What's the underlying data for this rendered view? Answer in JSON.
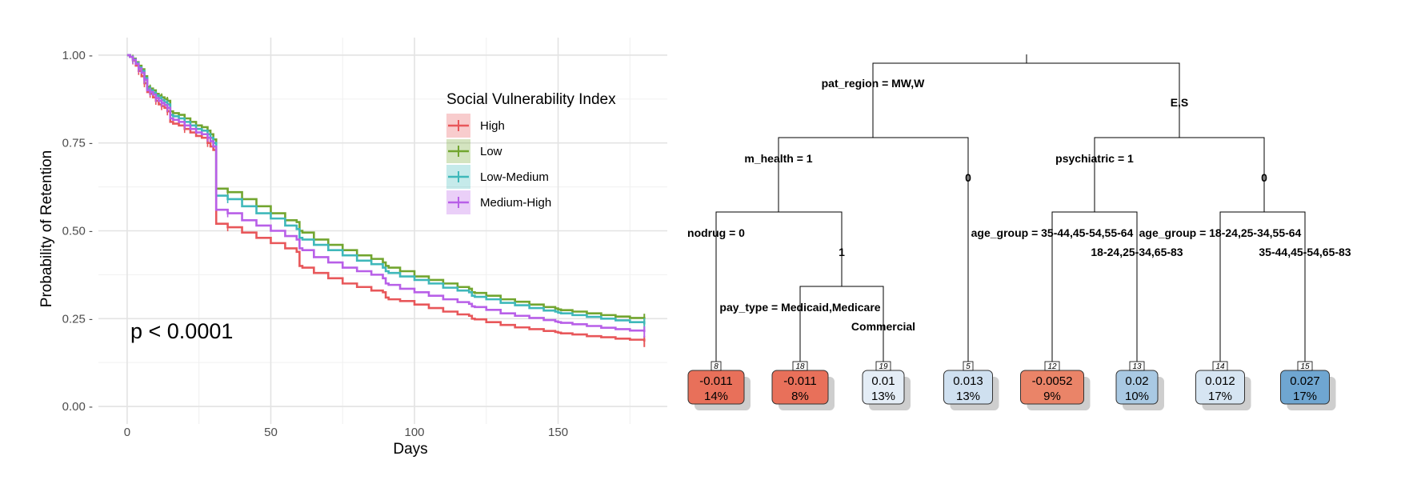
{
  "chart_data": [
    {
      "type": "line",
      "title": "",
      "xlabel": "Days",
      "ylabel": "Probability of Retention",
      "xlim": [
        -10,
        188
      ],
      "ylim": [
        -0.05,
        1.05
      ],
      "x_ticks": [
        0,
        50,
        100,
        150
      ],
      "x_tick_labels": [
        "0",
        "50",
        "100",
        "150"
      ],
      "y_ticks": [
        0,
        0.25,
        0.5,
        0.75,
        1
      ],
      "y_tick_labels": [
        "0.00 -",
        "0.25 -",
        "0.50 -",
        "0.75 -",
        "1.00 -"
      ],
      "grid": true,
      "legend": {
        "title": "Social Vulnerability Index",
        "position": "top-right",
        "entries": [
          "High",
          "Low",
          "Low-Medium",
          "Medium-High"
        ]
      },
      "annotation": "p < 0.0001",
      "series": [
        {
          "name": "High",
          "color": "#e8575a",
          "x": [
            0,
            1,
            2,
            3,
            4,
            5,
            6,
            7,
            8,
            9,
            10,
            11,
            12,
            13,
            14,
            15,
            16,
            18,
            20,
            22,
            24,
            26,
            28,
            29,
            30,
            31,
            35,
            40,
            45,
            50,
            55,
            59,
            60,
            61,
            65,
            70,
            75,
            80,
            85,
            89,
            90,
            91,
            95,
            100,
            105,
            110,
            115,
            119,
            120,
            121,
            125,
            130,
            135,
            140,
            145,
            149,
            150,
            151,
            155,
            160,
            165,
            170,
            175,
            180
          ],
          "y": [
            1.0,
            0.995,
            0.985,
            0.97,
            0.955,
            0.94,
            0.92,
            0.895,
            0.89,
            0.88,
            0.87,
            0.86,
            0.855,
            0.85,
            0.84,
            0.81,
            0.805,
            0.8,
            0.79,
            0.78,
            0.77,
            0.765,
            0.75,
            0.74,
            0.73,
            0.52,
            0.51,
            0.495,
            0.48,
            0.465,
            0.45,
            0.44,
            0.4,
            0.395,
            0.38,
            0.365,
            0.35,
            0.34,
            0.33,
            0.325,
            0.31,
            0.305,
            0.3,
            0.29,
            0.28,
            0.27,
            0.262,
            0.258,
            0.25,
            0.248,
            0.24,
            0.232,
            0.225,
            0.22,
            0.215,
            0.212,
            0.21,
            0.208,
            0.205,
            0.2,
            0.197,
            0.193,
            0.19,
            0.185
          ]
        },
        {
          "name": "Low",
          "color": "#72a52f",
          "x": [
            0,
            1,
            2,
            3,
            4,
            5,
            6,
            7,
            8,
            9,
            10,
            11,
            12,
            13,
            14,
            15,
            16,
            18,
            20,
            22,
            24,
            26,
            28,
            29,
            30,
            31,
            35,
            40,
            45,
            50,
            55,
            59,
            60,
            61,
            65,
            70,
            75,
            80,
            85,
            89,
            90,
            91,
            95,
            100,
            105,
            110,
            115,
            119,
            120,
            121,
            125,
            130,
            135,
            140,
            145,
            149,
            150,
            151,
            155,
            160,
            165,
            170,
            175,
            180
          ],
          "y": [
            1.0,
            0.995,
            0.99,
            0.98,
            0.97,
            0.96,
            0.94,
            0.91,
            0.905,
            0.9,
            0.89,
            0.885,
            0.88,
            0.875,
            0.87,
            0.84,
            0.835,
            0.83,
            0.82,
            0.81,
            0.8,
            0.795,
            0.785,
            0.775,
            0.76,
            0.62,
            0.61,
            0.59,
            0.57,
            0.55,
            0.53,
            0.525,
            0.5,
            0.495,
            0.475,
            0.46,
            0.445,
            0.43,
            0.42,
            0.41,
            0.4,
            0.395,
            0.385,
            0.37,
            0.36,
            0.35,
            0.34,
            0.335,
            0.325,
            0.323,
            0.315,
            0.305,
            0.298,
            0.29,
            0.283,
            0.279,
            0.276,
            0.274,
            0.27,
            0.265,
            0.26,
            0.256,
            0.252,
            0.248
          ]
        },
        {
          "name": "Low-Medium",
          "color": "#3fb8ba",
          "x": [
            0,
            1,
            2,
            3,
            4,
            5,
            6,
            7,
            8,
            9,
            10,
            11,
            12,
            13,
            14,
            15,
            16,
            18,
            20,
            22,
            24,
            26,
            28,
            29,
            30,
            31,
            35,
            40,
            45,
            50,
            55,
            59,
            60,
            61,
            65,
            70,
            75,
            80,
            85,
            89,
            90,
            91,
            95,
            100,
            105,
            110,
            115,
            119,
            120,
            121,
            125,
            130,
            135,
            140,
            145,
            149,
            150,
            151,
            155,
            160,
            165,
            170,
            175,
            180
          ],
          "y": [
            1.0,
            0.995,
            0.988,
            0.978,
            0.965,
            0.955,
            0.935,
            0.905,
            0.9,
            0.893,
            0.885,
            0.878,
            0.872,
            0.866,
            0.86,
            0.83,
            0.826,
            0.82,
            0.81,
            0.8,
            0.79,
            0.785,
            0.775,
            0.765,
            0.75,
            0.6,
            0.59,
            0.57,
            0.55,
            0.535,
            0.515,
            0.505,
            0.48,
            0.475,
            0.46,
            0.445,
            0.43,
            0.415,
            0.405,
            0.395,
            0.385,
            0.38,
            0.37,
            0.36,
            0.35,
            0.338,
            0.33,
            0.325,
            0.315,
            0.312,
            0.305,
            0.295,
            0.288,
            0.28,
            0.273,
            0.27,
            0.267,
            0.265,
            0.26,
            0.255,
            0.25,
            0.245,
            0.24,
            0.235
          ]
        },
        {
          "name": "Medium-High",
          "color": "#b85fe8",
          "x": [
            0,
            1,
            2,
            3,
            4,
            5,
            6,
            7,
            8,
            9,
            10,
            11,
            12,
            13,
            14,
            15,
            16,
            18,
            20,
            22,
            24,
            26,
            28,
            29,
            30,
            31,
            35,
            40,
            45,
            50,
            55,
            59,
            60,
            61,
            65,
            70,
            75,
            80,
            85,
            89,
            90,
            91,
            95,
            100,
            105,
            110,
            115,
            119,
            120,
            121,
            125,
            130,
            135,
            140,
            145,
            149,
            150,
            151,
            155,
            160,
            165,
            170,
            175,
            180
          ],
          "y": [
            1.0,
            0.995,
            0.987,
            0.975,
            0.962,
            0.95,
            0.93,
            0.9,
            0.895,
            0.888,
            0.878,
            0.87,
            0.864,
            0.858,
            0.85,
            0.82,
            0.816,
            0.81,
            0.8,
            0.79,
            0.78,
            0.775,
            0.765,
            0.755,
            0.74,
            0.56,
            0.55,
            0.53,
            0.515,
            0.5,
            0.485,
            0.475,
            0.45,
            0.445,
            0.425,
            0.41,
            0.395,
            0.385,
            0.375,
            0.365,
            0.35,
            0.346,
            0.335,
            0.325,
            0.315,
            0.305,
            0.297,
            0.292,
            0.285,
            0.283,
            0.275,
            0.265,
            0.258,
            0.252,
            0.246,
            0.242,
            0.24,
            0.238,
            0.234,
            0.229,
            0.224,
            0.22,
            0.216,
            0.212
          ]
        }
      ]
    },
    {
      "type": "tree",
      "title": "",
      "splits": [
        {
          "id": "root",
          "left_label": "pat_region = MW,W",
          "right_label": "E,S"
        },
        {
          "id": "n2",
          "left_label": "m_health = 1",
          "right_label": "0"
        },
        {
          "id": "n3",
          "left_label": "psychiatric = 1",
          "right_label": "0"
        },
        {
          "id": "n4",
          "left_label": "nodrug = 0",
          "right_label": "1"
        },
        {
          "id": "n9",
          "left_label": "pay_type = Medicaid,Medicare",
          "right_label": "Commercial"
        },
        {
          "id": "n6",
          "left_label": "age_group = 35-44,45-54,55-64",
          "right_label": "18-24,25-34,65-83"
        },
        {
          "id": "n7",
          "left_label": "age_group = 18-24,25-34,55-64",
          "right_label": "35-44,45-54,65-83"
        }
      ],
      "leaves": [
        {
          "id": "8",
          "value": "-0.011",
          "percent": "14%",
          "fill": "#e8705a"
        },
        {
          "id": "18",
          "value": "-0.011",
          "percent": "8%",
          "fill": "#e8705a"
        },
        {
          "id": "19",
          "value": "0.01",
          "percent": "13%",
          "fill": "#e4edf6"
        },
        {
          "id": "5",
          "value": "0.013",
          "percent": "13%",
          "fill": "#cfe0f0"
        },
        {
          "id": "12",
          "value": "-0.0052",
          "percent": "9%",
          "fill": "#ea8468"
        },
        {
          "id": "13",
          "value": "0.02",
          "percent": "10%",
          "fill": "#a9c9e3"
        },
        {
          "id": "14",
          "value": "0.012",
          "percent": "17%",
          "fill": "#d6e5f2"
        },
        {
          "id": "15",
          "value": "0.027",
          "percent": "17%",
          "fill": "#6fa6d1"
        }
      ]
    }
  ]
}
